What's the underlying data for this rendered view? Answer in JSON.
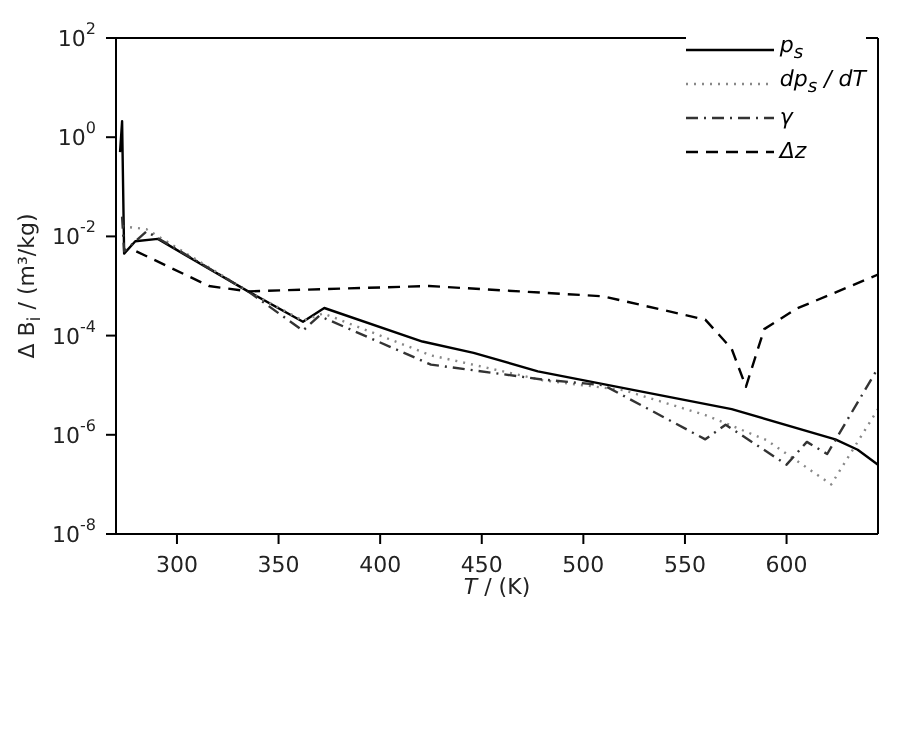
{
  "chart_data": {
    "type": "line",
    "xlabel": "T / (K)",
    "ylabel": "Δ B$_{i}$ / (m³/kg)",
    "log": "y",
    "legend": "top right",
    "xlim": [
      270,
      645
    ],
    "xticks": [
      300,
      350,
      400,
      450,
      500,
      550,
      600
    ],
    "ylim": [
      1e-08,
      100
    ],
    "yticks": [
      {
        "value": 1e-08,
        "label": "10$^{-8}$"
      },
      {
        "value": 1e-06,
        "label": "10$^{-6}$"
      },
      {
        "value": 0.0001,
        "label": "10$^{-4}$"
      },
      {
        "value": 0.01,
        "label": "10$^{-2}$"
      },
      {
        "value": 1,
        "label": "10$^{0}$"
      },
      {
        "value": 100,
        "label": "10$^{2}$"
      }
    ],
    "series": [
      {
        "name": "p$_{s}$",
        "color": "#000000",
        "line_style": "solid",
        "x": [
          272,
          273,
          274,
          279.5,
          290.6,
          303,
          335,
          362,
          372.5,
          420.8,
          446,
          477.6,
          573,
          624,
          635,
          645
        ],
        "values": [
          0.5,
          2.1,
          0.0045,
          0.008,
          0.0089,
          0.0045,
          0.00078,
          0.00019,
          0.00036,
          7.6e-05,
          4.5e-05,
          1.9e-05,
          3.3e-06,
          8.1e-07,
          5e-07,
          2.5e-07
        ]
      },
      {
        "name": "dp$_{s}$ / dT",
        "color": "#888888",
        "line_style": "dotted",
        "x": [
          273,
          285,
          335,
          362,
          372,
          425,
          480,
          520,
          560,
          590,
          622,
          645
        ],
        "values": [
          0.016,
          0.014,
          0.00078,
          0.0002,
          0.00028,
          4e-05,
          1.26e-05,
          7.9e-06,
          2.5e-06,
          7.9e-07,
          1e-07,
          3.3e-06
        ]
      },
      {
        "name": "γ",
        "color": "#333333",
        "line_style": "dashdot",
        "x": [
          273,
          274,
          285,
          335,
          362,
          370,
          425,
          480,
          510,
          560,
          570,
          600,
          610,
          620,
          644
        ],
        "values": [
          0.025,
          0.005,
          0.0126,
          0.00078,
          0.000126,
          0.00025,
          2.6e-05,
          1.3e-05,
          1e-05,
          8.1e-07,
          1.6e-06,
          2.5e-07,
          7.2e-07,
          4.1e-07,
          1.9e-05
        ]
      },
      {
        "name": "Δz",
        "color": "#000000",
        "line_style": "dashed",
        "x": [
          280,
          315.7,
          335,
          424,
          509.7,
          560,
          573,
          580,
          589,
          605,
          645
        ],
        "values": [
          0.005,
          0.001,
          0.00078,
          0.001,
          0.00062,
          0.00021,
          5.4e-05,
          9.3e-06,
          0.000135,
          0.00035,
          0.0017
        ]
      }
    ]
  }
}
